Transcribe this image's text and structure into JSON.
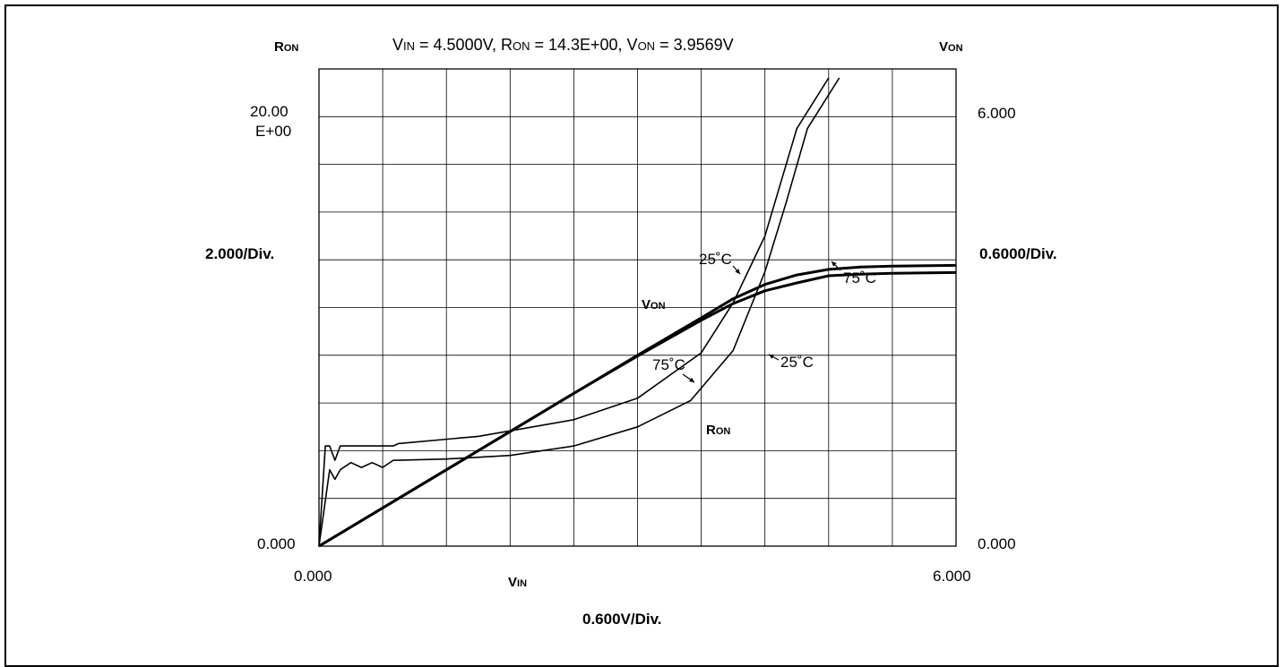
{
  "header": {
    "ron_label_big": "R",
    "ron_label_small": "ON",
    "von_label_big": "V",
    "von_label_small": "ON",
    "readout": {
      "vin_prefix": "V",
      "vin_sub": "IN",
      "vin_value": " = 4.5000V,  ",
      "ron_prefix": "R",
      "ron_sub": "ON",
      "ron_value": " = 14.3E+00, ",
      "von_prefix": "V",
      "von_sub": "ON",
      "von_value": " = 3.9569V"
    }
  },
  "axes": {
    "left_top": "20.00",
    "left_top_exp": "E+00",
    "left_bottom": "0.000",
    "left_scale": "2.000/Div.",
    "right_top": "6.000",
    "right_bottom": "0.000",
    "right_scale": "0.6000/Div.",
    "x_left": "0.000",
    "x_right": "6.000",
    "x_label_big": "V",
    "x_label_small": "IN",
    "x_scale": "0.600V/Div."
  },
  "annotations": {
    "von_label_big": "V",
    "von_label_small": "ON",
    "ron_label_big": "R",
    "ron_label_small": "ON",
    "von_25c": "25˚C",
    "von_75c": "75˚C",
    "ron_75c": "75˚C",
    "ron_25c": "25˚C"
  },
  "chart_data": {
    "type": "line",
    "x_axis": {
      "label": "VIN",
      "range": [
        0,
        6
      ],
      "divisions": 10,
      "units_per_div": 0.6
    },
    "y_axis_left": {
      "label": "RON",
      "range": [
        0,
        20
      ],
      "divisions": 10,
      "units_per_div": 2.0
    },
    "y_axis_right": {
      "label": "VON",
      "range": [
        0,
        6
      ],
      "divisions": 10,
      "units_per_div": 0.6
    },
    "grid": true,
    "series": [
      {
        "name": "VON 25˚C",
        "axis": "right",
        "x": [
          0,
          1.2,
          2.4,
          3.0,
          3.6,
          3.9,
          4.2,
          4.5,
          4.8,
          5.1,
          5.4,
          6.0
        ],
        "y": [
          0,
          0.96,
          1.92,
          2.4,
          2.87,
          3.11,
          3.29,
          3.41,
          3.48,
          3.51,
          3.52,
          3.53
        ]
      },
      {
        "name": "VON 75˚C",
        "axis": "right",
        "x": [
          0,
          1.2,
          2.4,
          3.0,
          3.6,
          3.9,
          4.2,
          4.5,
          4.8,
          5.1,
          5.4,
          6.0
        ],
        "y": [
          0,
          0.96,
          1.92,
          2.39,
          2.84,
          3.05,
          3.21,
          3.31,
          3.4,
          3.42,
          3.43,
          3.44
        ]
      },
      {
        "name": "RON 75˚C",
        "axis": "left",
        "x": [
          0,
          0.06,
          0.1,
          0.15,
          0.2,
          0.7,
          0.75,
          1.5,
          2.4,
          3.0,
          3.6,
          3.9,
          4.2,
          4.5,
          4.8
        ],
        "y": [
          0,
          4.2,
          4.2,
          3.6,
          4.2,
          4.2,
          4.3,
          4.6,
          5.3,
          6.2,
          8.1,
          10.2,
          13.0,
          17.5,
          21.5
        ]
      },
      {
        "name": "RON 25˚C",
        "axis": "left",
        "x": [
          0,
          0.1,
          0.15,
          0.2,
          0.3,
          0.4,
          0.5,
          0.6,
          0.7,
          0.75,
          1.2,
          1.8,
          2.4,
          3.0,
          3.5,
          3.9,
          4.2,
          4.4,
          4.6,
          4.9
        ],
        "y": [
          0,
          3.2,
          2.8,
          3.2,
          3.5,
          3.3,
          3.5,
          3.3,
          3.6,
          3.6,
          3.65,
          3.8,
          4.2,
          5.0,
          6.1,
          8.2,
          11.5,
          14.4,
          17.5,
          21.5
        ]
      }
    ]
  }
}
